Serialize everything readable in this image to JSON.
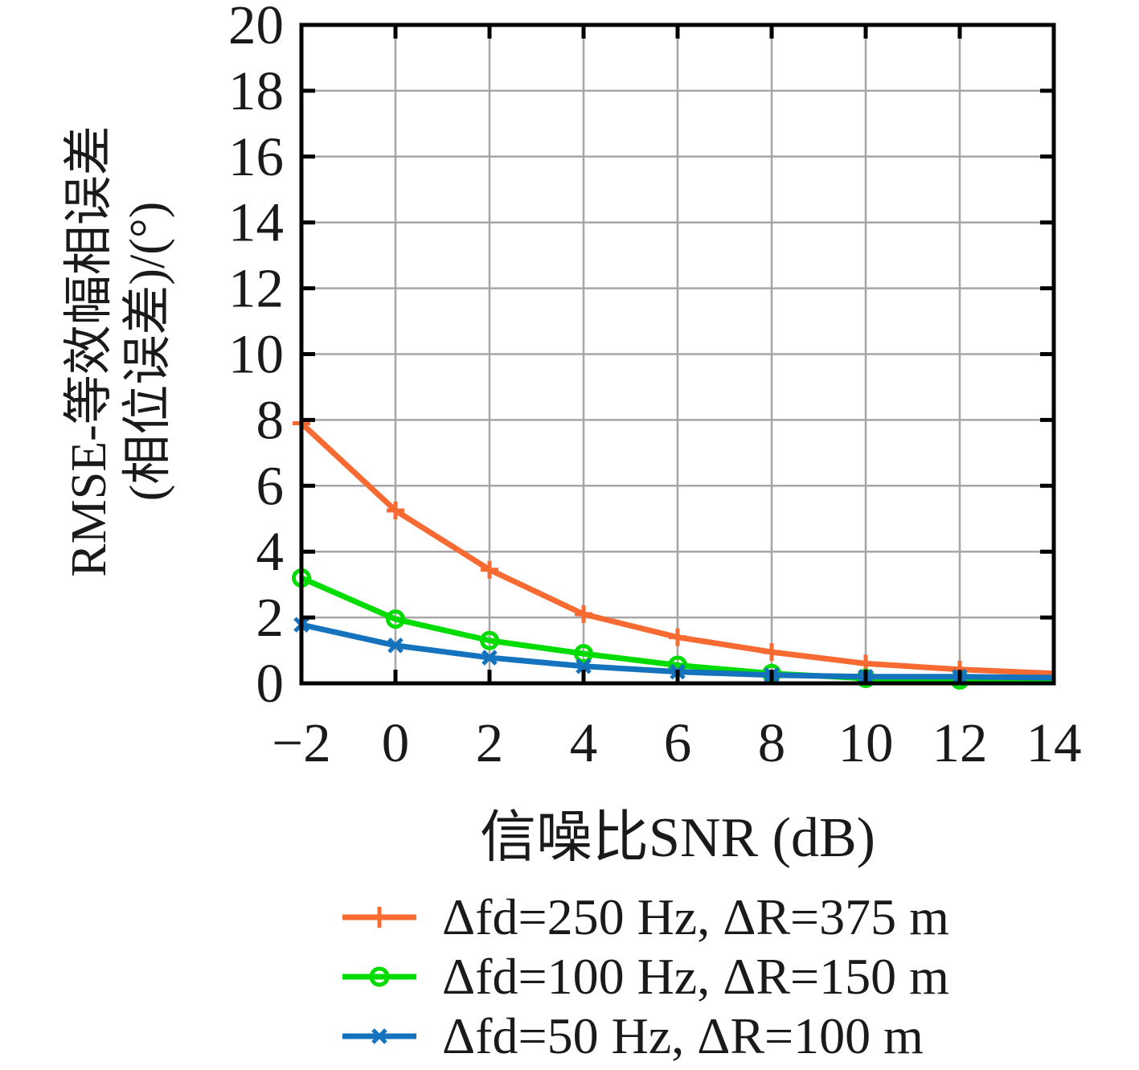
{
  "chart_data": {
    "type": "line",
    "title": "",
    "xlabel": "信噪比SNR (dB)",
    "ylabel_line1": "RMSE-等效幅相误差",
    "ylabel_line2": "(相位误差)/(°)",
    "xlim": [
      -2,
      14
    ],
    "ylim": [
      0,
      20
    ],
    "x_ticks": [
      -2,
      0,
      2,
      4,
      6,
      8,
      10,
      12,
      14
    ],
    "x_tick_labels": [
      "−2",
      "0",
      "2",
      "4",
      "6",
      "8",
      "10",
      "12",
      "14"
    ],
    "y_ticks": [
      0,
      2,
      4,
      6,
      8,
      10,
      12,
      14,
      16,
      18,
      20
    ],
    "y_tick_labels": [
      "0",
      "2",
      "4",
      "6",
      "8",
      "10",
      "12",
      "14",
      "16",
      "18",
      "20"
    ],
    "grid": true,
    "grid_color": "#a6a6a6",
    "axis_color": "#000000",
    "legend_position": "below-axis",
    "x": [
      -2,
      0,
      2,
      4,
      6,
      8,
      10,
      12,
      14
    ],
    "series": [
      {
        "label": "Δfd=250 Hz, ΔR=375 m",
        "color": "#f76b33",
        "marker": "plus",
        "values": [
          7.9,
          5.25,
          3.45,
          2.1,
          1.4,
          0.95,
          0.6,
          0.42,
          0.3
        ]
      },
      {
        "label": "Δfd=100 Hz, ΔR=150 m",
        "color": "#00dc00",
        "marker": "circle",
        "values": [
          3.2,
          1.95,
          1.3,
          0.9,
          0.55,
          0.3,
          0.15,
          0.1,
          0.08
        ]
      },
      {
        "label": "Δfd=50 Hz, ΔR=100 m",
        "color": "#1573bd",
        "marker": "x",
        "values": [
          1.78,
          1.15,
          0.78,
          0.52,
          0.35,
          0.25,
          0.2,
          0.2,
          0.17
        ]
      }
    ]
  }
}
